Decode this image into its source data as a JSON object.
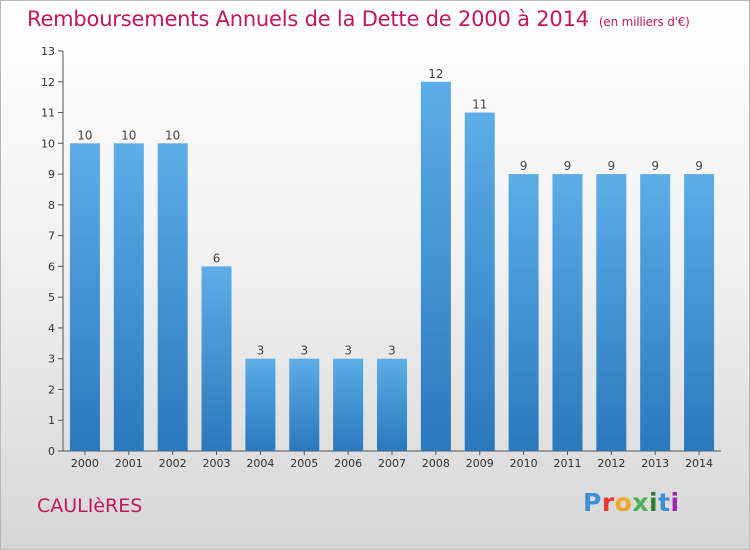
{
  "title": "Remboursements Annuels de la Dette de 2000 à 2014",
  "unit": "(en milliers d'€)",
  "place": "CAULIèRES",
  "logo": "Proxiti",
  "colors": {
    "title": "#c2185b",
    "bar_light": "#5dade8",
    "bar_dark": "#2a78bc"
  },
  "chart_data": {
    "type": "bar",
    "categories": [
      "2000",
      "2001",
      "2002",
      "2003",
      "2004",
      "2005",
      "2006",
      "2007",
      "2008",
      "2009",
      "2010",
      "2011",
      "2012",
      "2013",
      "2014"
    ],
    "values": [
      10,
      10,
      10,
      6,
      3,
      3,
      3,
      3,
      12,
      11,
      9,
      9,
      9,
      9,
      9
    ],
    "title": "Remboursements Annuels de la Dette de 2000 à 2014",
    "xlabel": "",
    "ylabel": "",
    "ylim": [
      0,
      13
    ],
    "yticks": [
      0,
      1,
      2,
      3,
      4,
      5,
      6,
      7,
      8,
      9,
      10,
      11,
      12,
      13
    ],
    "grid": false,
    "data_labels": true
  }
}
